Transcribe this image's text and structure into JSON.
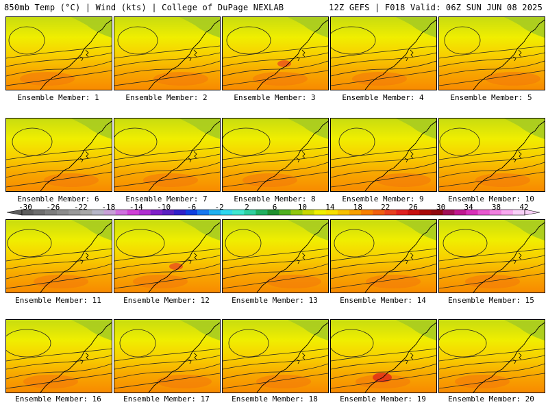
{
  "header": {
    "left": "850mb Temp (°C) | Wind (kts) | College of DuPage NEXLAB",
    "right": "12Z GEFS | F018 Valid: 06Z SUN JUN 08 2025"
  },
  "members": [
    {
      "label": "Ensemble Member: 1"
    },
    {
      "label": "Ensemble Member: 2"
    },
    {
      "label": "Ensemble Member: 3"
    },
    {
      "label": "Ensemble Member: 4"
    },
    {
      "label": "Ensemble Member: 5"
    },
    {
      "label": "Ensemble Member: 6"
    },
    {
      "label": "Ensemble Member: 7"
    },
    {
      "label": "Ensemble Member: 8"
    },
    {
      "label": "Ensemble Member: 9"
    },
    {
      "label": "Ensemble Member: 10"
    },
    {
      "label": "Ensemble Member: 11"
    },
    {
      "label": "Ensemble Member: 12"
    },
    {
      "label": "Ensemble Member: 13"
    },
    {
      "label": "Ensemble Member: 14"
    },
    {
      "label": "Ensemble Member: 15"
    },
    {
      "label": "Ensemble Member: 16"
    },
    {
      "label": "Ensemble Member: 17"
    },
    {
      "label": "Ensemble Member: 18"
    },
    {
      "label": "Ensemble Member: 19"
    },
    {
      "label": "Ensemble Member: 20"
    }
  ],
  "colorbar": {
    "ticks": [
      "-30",
      "-26",
      "-22",
      "-18",
      "-14",
      "-10",
      "-6",
      "-2",
      "2",
      "6",
      "10",
      "14",
      "18",
      "22",
      "26",
      "30",
      "34",
      "38",
      "42"
    ],
    "colors": [
      "#5e5e5e",
      "#6e6e6e",
      "#7e7e7e",
      "#8c8c8c",
      "#9a9a9a",
      "#a8a8a8",
      "#b6b6c8",
      "#c8a0d8",
      "#d070e0",
      "#d040d8",
      "#b030d0",
      "#8020c8",
      "#5a20c0",
      "#3020c8",
      "#1040e0",
      "#1878f0",
      "#20b0f0",
      "#30d8f0",
      "#40e8d0",
      "#30d0a0",
      "#20b060",
      "#209030",
      "#50b020",
      "#90c810",
      "#c8d800",
      "#f0f000",
      "#f8e000",
      "#f8c000",
      "#f8a000",
      "#f88000",
      "#f06010",
      "#e84020",
      "#e02020",
      "#c81010",
      "#a80808",
      "#900810",
      "#a01058",
      "#c01890",
      "#d830b8",
      "#e858d0",
      "#f080e0",
      "#f8a8f0",
      "#f8d0f8"
    ]
  }
}
